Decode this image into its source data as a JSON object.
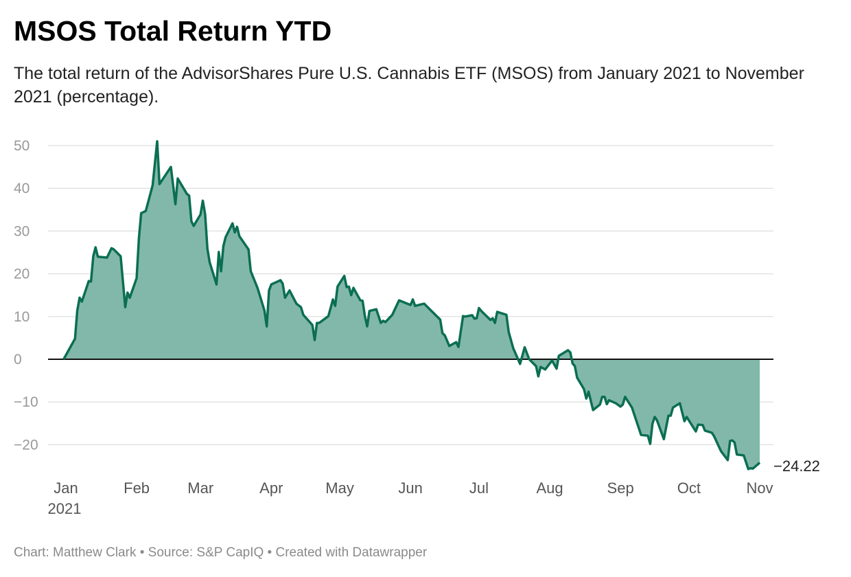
{
  "title": "MSOS Total Return YTD",
  "subtitle": "The total return of the AdvisorShares Pure U.S. Cannabis ETF (MSOS) from January 2021 to November 2021 (percentage).",
  "footer": "Chart: Matthew Clark • Source: S&P CapIQ • Created with Datawrapper",
  "colors": {
    "line": "#0b6e52",
    "fill": "#82b8aa",
    "zero_line": "#111111",
    "grid": "#e3e3e3"
  },
  "chart_data": {
    "type": "area",
    "title": "MSOS Total Return YTD",
    "xlabel": "",
    "ylabel": "",
    "ylim": [
      -26,
      52
    ],
    "xlim": [
      "2020-12-31",
      "2021-11-01"
    ],
    "y_ticks": [
      50,
      40,
      30,
      20,
      10,
      0,
      -10,
      -20
    ],
    "y_tick_labels": [
      "50",
      "40",
      "30",
      "20",
      "10",
      "0",
      "−10",
      "−20"
    ],
    "x_ticks": [
      "2021-01-01",
      "2021-02-01",
      "2021-03-01",
      "2021-04-01",
      "2021-05-01",
      "2021-06-01",
      "2021-07-01",
      "2021-08-01",
      "2021-09-01",
      "2021-10-01",
      "2021-11-01"
    ],
    "x_tick_labels": [
      "Jan",
      "Feb",
      "Mar",
      "Apr",
      "May",
      "Jun",
      "Jul",
      "Aug",
      "Sep",
      "Oct",
      "Nov"
    ],
    "x_year_label": "2021",
    "grid": true,
    "end_label": "−24.22",
    "points": [
      [
        "2020-12-31",
        0
      ],
      [
        "2021-01-05",
        4.8
      ],
      [
        "2021-01-06",
        11.4
      ],
      [
        "2021-01-07",
        14.4
      ],
      [
        "2021-01-08",
        13.5
      ],
      [
        "2021-01-11",
        18.3
      ],
      [
        "2021-01-12",
        18.2
      ],
      [
        "2021-01-13",
        24.1
      ],
      [
        "2021-01-14",
        26.2
      ],
      [
        "2021-01-15",
        24.0
      ],
      [
        "2021-01-19",
        23.8
      ],
      [
        "2021-01-21",
        26.0
      ],
      [
        "2021-01-22",
        25.7
      ],
      [
        "2021-01-25",
        24.1
      ],
      [
        "2021-01-27",
        12.2
      ],
      [
        "2021-01-28",
        15.6
      ],
      [
        "2021-01-29",
        14.4
      ],
      [
        "2021-02-01",
        19.0
      ],
      [
        "2021-02-02",
        28.3
      ],
      [
        "2021-02-03",
        34.2
      ],
      [
        "2021-02-05",
        34.7
      ],
      [
        "2021-02-08",
        40.7
      ],
      [
        "2021-02-10",
        51.0
      ],
      [
        "2021-02-11",
        41.0
      ],
      [
        "2021-02-16",
        45.0
      ],
      [
        "2021-02-18",
        36.3
      ],
      [
        "2021-02-19",
        42.3
      ],
      [
        "2021-02-23",
        38.7
      ],
      [
        "2021-02-24",
        38.3
      ],
      [
        "2021-02-25",
        32.3
      ],
      [
        "2021-02-26",
        31.2
      ],
      [
        "2021-03-01",
        33.9
      ],
      [
        "2021-03-02",
        37.1
      ],
      [
        "2021-03-03",
        33.9
      ],
      [
        "2021-03-04",
        25.9
      ],
      [
        "2021-03-05",
        22.7
      ],
      [
        "2021-03-08",
        17.5
      ],
      [
        "2021-03-09",
        25.1
      ],
      [
        "2021-03-10",
        20.6
      ],
      [
        "2021-03-11",
        26.5
      ],
      [
        "2021-03-12",
        28.6
      ],
      [
        "2021-03-15",
        31.8
      ],
      [
        "2021-03-16",
        29.7
      ],
      [
        "2021-03-17",
        31.0
      ],
      [
        "2021-03-18",
        28.8
      ],
      [
        "2021-03-22",
        25.7
      ],
      [
        "2021-03-23",
        20.6
      ],
      [
        "2021-03-26",
        16.6
      ],
      [
        "2021-03-29",
        11.4
      ],
      [
        "2021-03-30",
        7.7
      ],
      [
        "2021-03-31",
        16.1
      ],
      [
        "2021-04-01",
        17.5
      ],
      [
        "2021-04-05",
        18.5
      ],
      [
        "2021-04-06",
        17.7
      ],
      [
        "2021-04-07",
        14.4
      ],
      [
        "2021-04-09",
        16.1
      ],
      [
        "2021-04-12",
        13.0
      ],
      [
        "2021-04-14",
        12.2
      ],
      [
        "2021-04-15",
        10.4
      ],
      [
        "2021-04-16",
        9.8
      ],
      [
        "2021-04-19",
        8.0
      ],
      [
        "2021-04-20",
        4.5
      ],
      [
        "2021-04-21",
        8.5
      ],
      [
        "2021-04-22",
        8.5
      ],
      [
        "2021-04-26",
        10.1
      ],
      [
        "2021-04-28",
        14.0
      ],
      [
        "2021-04-29",
        12.5
      ],
      [
        "2021-04-30",
        17.0
      ],
      [
        "2021-05-03",
        19.5
      ],
      [
        "2021-05-04",
        16.9
      ],
      [
        "2021-05-05",
        17.0
      ],
      [
        "2021-05-06",
        15.0
      ],
      [
        "2021-05-07",
        16.7
      ],
      [
        "2021-05-10",
        13.8
      ],
      [
        "2021-05-11",
        13.7
      ],
      [
        "2021-05-12",
        10.1
      ],
      [
        "2021-05-13",
        7.7
      ],
      [
        "2021-05-14",
        11.3
      ],
      [
        "2021-05-17",
        11.7
      ],
      [
        "2021-05-19",
        8.5
      ],
      [
        "2021-05-20",
        9.0
      ],
      [
        "2021-05-21",
        8.7
      ],
      [
        "2021-05-24",
        10.4
      ],
      [
        "2021-05-27",
        13.8
      ],
      [
        "2021-06-01",
        12.7
      ],
      [
        "2021-06-02",
        14.0
      ],
      [
        "2021-06-03",
        12.5
      ],
      [
        "2021-06-07",
        13.0
      ],
      [
        "2021-06-10",
        11.4
      ],
      [
        "2021-06-14",
        9.3
      ],
      [
        "2021-06-15",
        6.1
      ],
      [
        "2021-06-16",
        5.6
      ],
      [
        "2021-06-18",
        3.1
      ],
      [
        "2021-06-21",
        4.0
      ],
      [
        "2021-06-22",
        2.9
      ],
      [
        "2021-06-24",
        10.1
      ],
      [
        "2021-06-25",
        10.0
      ],
      [
        "2021-06-28",
        10.3
      ],
      [
        "2021-06-29",
        9.5
      ],
      [
        "2021-06-30",
        9.6
      ],
      [
        "2021-07-01",
        12.0
      ],
      [
        "2021-07-02",
        11.3
      ],
      [
        "2021-07-06",
        9.2
      ],
      [
        "2021-07-07",
        9.6
      ],
      [
        "2021-07-08",
        8.5
      ],
      [
        "2021-07-09",
        11.1
      ],
      [
        "2021-07-13",
        10.4
      ],
      [
        "2021-07-14",
        6.4
      ],
      [
        "2021-07-16",
        2.6
      ],
      [
        "2021-07-19",
        -1.1
      ],
      [
        "2021-07-21",
        2.8
      ],
      [
        "2021-07-23",
        0.0
      ],
      [
        "2021-07-26",
        -1.6
      ],
      [
        "2021-07-27",
        -4.0
      ],
      [
        "2021-07-28",
        -1.8
      ],
      [
        "2021-07-30",
        -2.4
      ],
      [
        "2021-08-02",
        -0.3
      ],
      [
        "2021-08-04",
        -2.2
      ],
      [
        "2021-08-05",
        0.8
      ],
      [
        "2021-08-09",
        2.1
      ],
      [
        "2021-08-10",
        1.6
      ],
      [
        "2021-08-11",
        -1.0
      ],
      [
        "2021-08-12",
        -1.6
      ],
      [
        "2021-08-13",
        -4.3
      ],
      [
        "2021-08-16",
        -7.0
      ],
      [
        "2021-08-17",
        -9.2
      ],
      [
        "2021-08-18",
        -7.6
      ],
      [
        "2021-08-20",
        -11.9
      ],
      [
        "2021-08-23",
        -10.6
      ],
      [
        "2021-08-24",
        -8.8
      ],
      [
        "2021-08-25",
        -8.8
      ],
      [
        "2021-08-26",
        -10.5
      ],
      [
        "2021-08-27",
        -9.6
      ],
      [
        "2021-08-30",
        -10.3
      ],
      [
        "2021-09-01",
        -11.1
      ],
      [
        "2021-09-02",
        -10.6
      ],
      [
        "2021-09-03",
        -8.8
      ],
      [
        "2021-09-06",
        -11.3
      ],
      [
        "2021-09-10",
        -17.7
      ],
      [
        "2021-09-13",
        -17.9
      ],
      [
        "2021-09-14",
        -19.8
      ],
      [
        "2021-09-15",
        -15.1
      ],
      [
        "2021-09-16",
        -13.5
      ],
      [
        "2021-09-17",
        -14.3
      ],
      [
        "2021-09-20",
        -18.7
      ],
      [
        "2021-09-22",
        -13.2
      ],
      [
        "2021-09-23",
        -13.2
      ],
      [
        "2021-09-24",
        -11.3
      ],
      [
        "2021-09-27",
        -10.3
      ],
      [
        "2021-09-29",
        -14.5
      ],
      [
        "2021-09-30",
        -13.5
      ],
      [
        "2021-10-04",
        -16.9
      ],
      [
        "2021-10-05",
        -15.3
      ],
      [
        "2021-10-07",
        -15.4
      ],
      [
        "2021-10-08",
        -16.7
      ],
      [
        "2021-10-11",
        -17.2
      ],
      [
        "2021-10-12",
        -18.0
      ],
      [
        "2021-10-15",
        -21.5
      ],
      [
        "2021-10-18",
        -23.6
      ],
      [
        "2021-10-19",
        -19.1
      ],
      [
        "2021-10-20",
        -19.0
      ],
      [
        "2021-10-21",
        -19.5
      ],
      [
        "2021-10-22",
        -22.3
      ],
      [
        "2021-10-25",
        -22.5
      ],
      [
        "2021-10-27",
        -25.7
      ],
      [
        "2021-10-28",
        -25.5
      ],
      [
        "2021-10-29",
        -25.6
      ],
      [
        "2021-11-01",
        -24.22
      ]
    ]
  }
}
